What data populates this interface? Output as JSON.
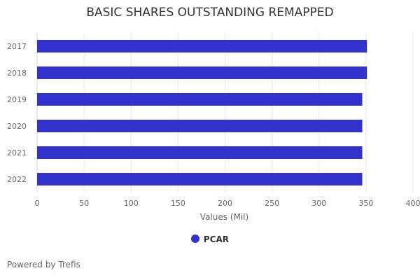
{
  "chart_data": {
    "type": "bar",
    "orientation": "horizontal",
    "title": "BASIC SHARES OUTSTANDING REMAPPED",
    "categories": [
      "2017",
      "2018",
      "2019",
      "2020",
      "2021",
      "2022"
    ],
    "series": [
      {
        "name": "PCAR",
        "values": [
          351,
          351,
          346,
          346,
          346,
          346
        ],
        "color": "#3333cc"
      }
    ],
    "xlabel": "Values (Mil)",
    "xlim": [
      0,
      400
    ],
    "xticks": [
      0,
      50,
      100,
      150,
      200,
      250,
      300,
      350,
      400
    ],
    "grid": true,
    "legend": "bottom"
  },
  "footer": {
    "credit": "Powered by Trefis"
  }
}
